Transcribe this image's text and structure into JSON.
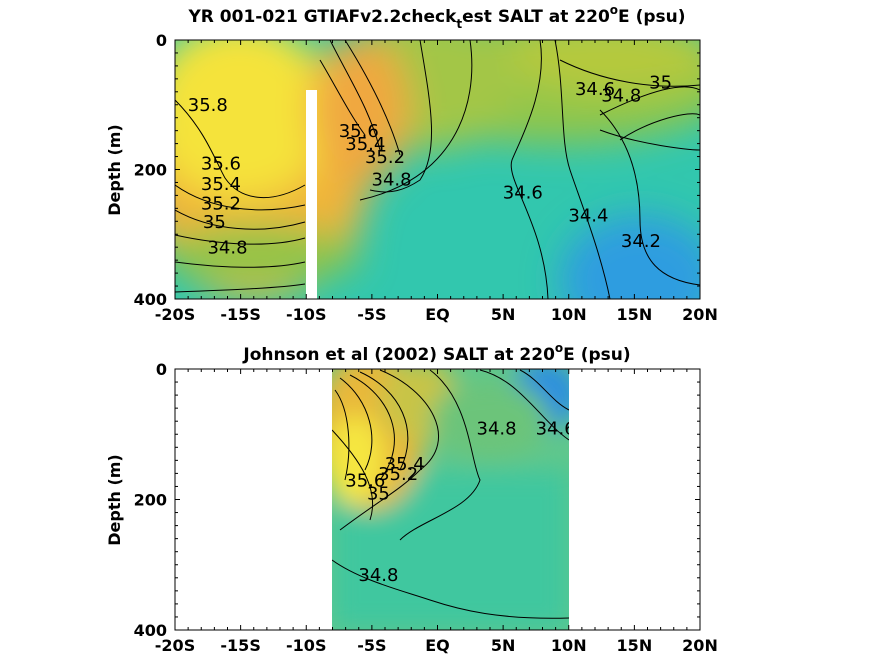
{
  "chart_data": [
    {
      "type": "heatmap",
      "title_main": "YR 001-021 GTIAFv2.2check",
      "title_sub": "t",
      "title_rest": "est SALT at 220",
      "title_sup": "o",
      "title_end": "E (psu)",
      "ylabel": "Depth (m)",
      "xlim": [
        -20,
        20
      ],
      "ylim": [
        0,
        400
      ],
      "xticks": [
        "-20S",
        "-15S",
        "-10S",
        "-5S",
        "EQ",
        "5N",
        "10N",
        "15N",
        "20N"
      ],
      "yticks": [
        "0",
        "200",
        "400"
      ],
      "color_scale": [
        "#2a8ee0",
        "#2ec7b1",
        "#a3c646",
        "#f5e23a",
        "#f0d226",
        "#f7ee1e"
      ],
      "contour_labels": [
        {
          "text": "35.8",
          "lat": -17.5,
          "depth": 110
        },
        {
          "text": "35.6",
          "lat": -16.5,
          "depth": 200
        },
        {
          "text": "35.4",
          "lat": -16.5,
          "depth": 232
        },
        {
          "text": "35.2",
          "lat": -16.5,
          "depth": 262
        },
        {
          "text": "35",
          "lat": -17.0,
          "depth": 290
        },
        {
          "text": "34.8",
          "lat": -16.0,
          "depth": 330
        },
        {
          "text": "35.6",
          "lat": -6.0,
          "depth": 150
        },
        {
          "text": "35.4",
          "lat": -5.5,
          "depth": 170
        },
        {
          "text": "35.2",
          "lat": -4.0,
          "depth": 190
        },
        {
          "text": "34.8",
          "lat": -3.5,
          "depth": 225
        },
        {
          "text": "34.6",
          "lat": 6.5,
          "depth": 245
        },
        {
          "text": "34.4",
          "lat": 11.5,
          "depth": 280
        },
        {
          "text": "34.2",
          "lat": 15.5,
          "depth": 320
        },
        {
          "text": "34.6",
          "lat": 12.0,
          "depth": 85
        },
        {
          "text": "34.8",
          "lat": 14.0,
          "depth": 95
        },
        {
          "text": "35",
          "lat": 17.0,
          "depth": 75
        }
      ]
    },
    {
      "type": "heatmap",
      "title_main": "Johnson et al (2002) SALT at 220",
      "title_sup": "o",
      "title_end": "E (psu)",
      "ylabel": "Depth (m)",
      "xlim": [
        -20,
        20
      ],
      "ylim": [
        0,
        400
      ],
      "data_lat_range": [
        -8,
        10
      ],
      "xticks": [
        "-20S",
        "-15S",
        "-10S",
        "-5S",
        "EQ",
        "5N",
        "10N",
        "15N",
        "20N"
      ],
      "yticks": [
        "0",
        "200",
        "400"
      ],
      "contour_labels": [
        {
          "text": "35.6",
          "lat": -5.5,
          "depth": 180
        },
        {
          "text": "35.4",
          "lat": -2.5,
          "depth": 155
        },
        {
          "text": "35.2",
          "lat": -3.0,
          "depth": 170
        },
        {
          "text": "35",
          "lat": -4.5,
          "depth": 200
        },
        {
          "text": "34.8",
          "lat": 4.5,
          "depth": 100
        },
        {
          "text": "34.6",
          "lat": 9.0,
          "depth": 100
        },
        {
          "text": "34.8",
          "lat": -4.5,
          "depth": 325
        }
      ]
    }
  ]
}
